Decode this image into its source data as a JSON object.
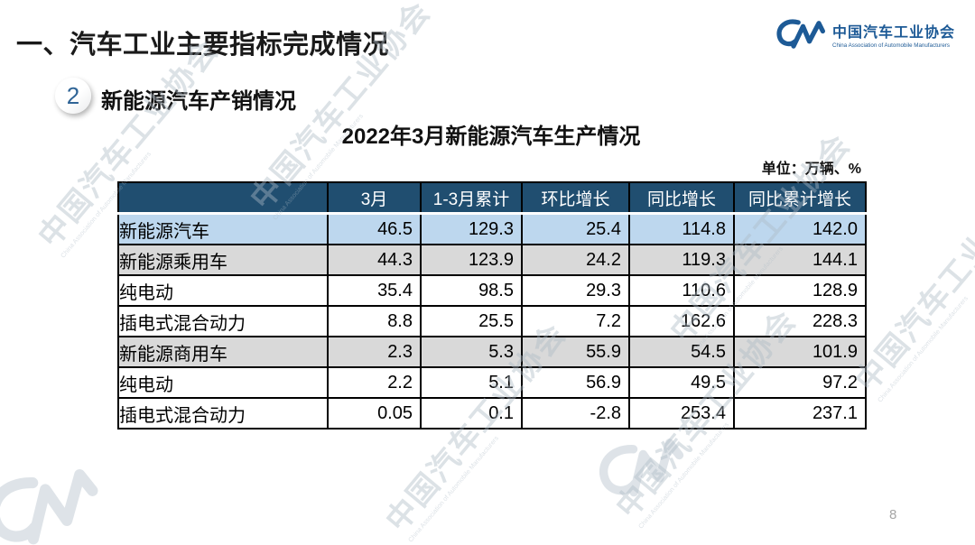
{
  "page": {
    "title": "一、汽车工业主要指标完成情况",
    "page_number": "8"
  },
  "logo": {
    "org_cn": "中国汽车工业协会",
    "org_en": "China Association of Automobile Manufacturers"
  },
  "section": {
    "number": "2",
    "label": "新能源汽车产销情况"
  },
  "table": {
    "title": "2022年3月新能源汽车生产情况",
    "unit": "单位：万辆、%",
    "columns": [
      "",
      "3月",
      "1-3月累计",
      "环比增长",
      "同比增长",
      "同比累计增长"
    ],
    "rows": [
      {
        "label": "新能源汽车",
        "indent": 0,
        "highlight": "blue",
        "values": [
          "46.5",
          "129.3",
          "25.4",
          "114.8",
          "142.0"
        ]
      },
      {
        "label": "新能源乘用车",
        "indent": 1,
        "highlight": "gray",
        "values": [
          "44.3",
          "123.9",
          "24.2",
          "119.3",
          "144.1"
        ]
      },
      {
        "label": "纯电动",
        "indent": 2,
        "highlight": "white",
        "values": [
          "35.4",
          "98.5",
          "29.3",
          "110.6",
          "128.9"
        ]
      },
      {
        "label": "插电式混合动力",
        "indent": 2,
        "highlight": "white",
        "values": [
          "8.8",
          "25.5",
          "7.2",
          "162.6",
          "228.3"
        ]
      },
      {
        "label": "新能源商用车",
        "indent": 1,
        "highlight": "gray",
        "values": [
          "2.3",
          "5.3",
          "55.9",
          "54.5",
          "101.9"
        ]
      },
      {
        "label": "纯电动",
        "indent": 2,
        "highlight": "white",
        "values": [
          "2.2",
          "5.1",
          "56.9",
          "49.5",
          "97.2"
        ]
      },
      {
        "label": "插电式混合动力",
        "indent": 2,
        "highlight": "white",
        "values": [
          "0.05",
          "0.1",
          "-2.8",
          "253.4",
          "237.1"
        ]
      }
    ]
  },
  "watermark": {
    "text": "中国汽车工业协会",
    "subtext": "China Association of Automobile Manufacturers"
  },
  "colors": {
    "header_bg": "#204e70",
    "row_highlight_blue": "#bdd7ee",
    "row_highlight_gray": "#d9d9d9",
    "brand_blue": "#1d5a96",
    "watermark_gray": "#aebbc6"
  }
}
